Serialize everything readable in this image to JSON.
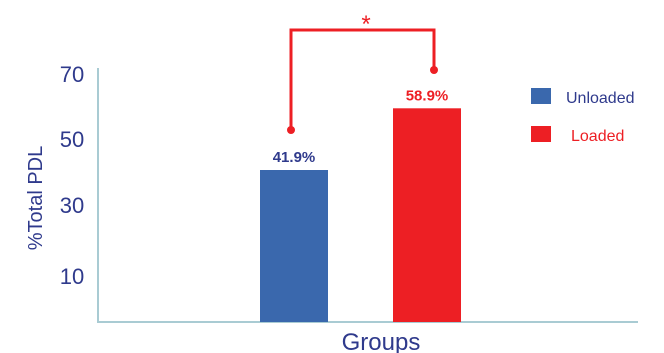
{
  "chart_data": {
    "type": "bar",
    "title": "",
    "xlabel": "Groups",
    "ylabel": "%Total PDL",
    "ylim": [
      0,
      70
    ],
    "y_ticks": [
      "10",
      "30",
      "50",
      "70"
    ],
    "grid": false,
    "legend_position": "right",
    "series": [
      {
        "name": "Unloaded",
        "value": 41.9,
        "label": "41.9%",
        "color": "#3a68ad"
      },
      {
        "name": "Loaded",
        "value": 58.9,
        "label": "58.9%",
        "color": "#ed1f24"
      }
    ],
    "significance": {
      "symbol": "*",
      "color": "#ed1f24"
    },
    "axis_color": "#a9cbd3",
    "text_color": "#2f3a8c"
  }
}
